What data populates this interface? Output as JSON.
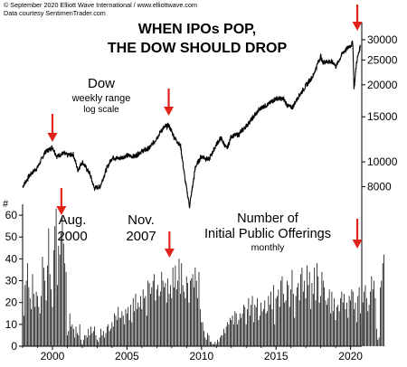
{
  "credits": {
    "line1": "© September 2020 Elliott Wave International / www.elliottwave.com",
    "line2": "Data courtesy SentimenTrader.com"
  },
  "colors": {
    "line": "#000000",
    "bars": "#000000",
    "arrows": "#e2231a",
    "text": "#000000"
  },
  "chart_data": [
    {
      "type": "line",
      "title": "WHEN IPOs POP, THE DOW SHOULD DROP",
      "title_lines": [
        "WHEN IPOs POP,",
        "THE DOW SHOULD DROP"
      ],
      "series_label": [
        "Dow",
        "weekly range",
        "log scale"
      ],
      "yscale": "log",
      "ylim": [
        6500,
        35000
      ],
      "yticks": [
        8000,
        10000,
        15000,
        20000,
        25000,
        30000
      ],
      "ytick_labels": [
        "8000",
        "10000",
        "15000",
        "20000",
        "25000",
        "30000"
      ],
      "xlim": [
        1998,
        2020.75
      ],
      "x": [
        1998.0,
        1998.5,
        1999.0,
        1999.5,
        2000.0,
        2000.3,
        2000.7,
        2001.0,
        2001.4,
        2001.7,
        2002.0,
        2002.5,
        2002.8,
        2003.2,
        2003.6,
        2004.0,
        2004.5,
        2005.0,
        2005.5,
        2006.0,
        2006.5,
        2007.0,
        2007.4,
        2007.8,
        2008.2,
        2008.6,
        2008.9,
        2009.2,
        2009.6,
        2010.0,
        2010.5,
        2011.0,
        2011.3,
        2011.7,
        2012.0,
        2012.5,
        2013.0,
        2013.5,
        2014.0,
        2014.5,
        2015.0,
        2015.5,
        2015.8,
        2016.1,
        2016.5,
        2017.0,
        2017.5,
        2018.0,
        2018.1,
        2018.5,
        2018.9,
        2019.0,
        2019.5,
        2020.0,
        2020.15,
        2020.23,
        2020.4,
        2020.55,
        2020.67
      ],
      "values": [
        8000,
        8900,
        9500,
        10900,
        11400,
        10500,
        10800,
        10600,
        10700,
        9300,
        10000,
        9000,
        7900,
        8000,
        9300,
        10400,
        10300,
        10600,
        10500,
        11000,
        11300,
        12400,
        13500,
        13900,
        12400,
        11500,
        8500,
        6700,
        9600,
        10500,
        10200,
        11700,
        12400,
        11200,
        12600,
        12800,
        13800,
        15000,
        16300,
        16800,
        17700,
        17600,
        16500,
        16300,
        18000,
        19800,
        21800,
        26000,
        24500,
        24700,
        24300,
        23500,
        26800,
        28500,
        29300,
        19200,
        24500,
        26800,
        28500
      ]
    },
    {
      "type": "bar",
      "title": "Number of Initial Public Offerings",
      "title_lines": [
        "Number of",
        "Initial Public Offerings"
      ],
      "subtitle": "monthly",
      "ylabel": "#",
      "ylim": [
        0,
        65
      ],
      "yticks": [
        0,
        10,
        20,
        30,
        40,
        50,
        60
      ],
      "ytick_labels": [
        "0",
        "10",
        "20",
        "30",
        "40",
        "50",
        "60"
      ],
      "xlim": [
        1998,
        2020.75
      ],
      "xticks": [
        2000,
        2005,
        2010,
        2015,
        2020
      ],
      "xtick_labels": [
        "2000",
        "2005",
        "2010",
        "2015",
        "2020"
      ],
      "x_start": 1998.0,
      "x_step": 0.0833,
      "values": [
        32,
        14,
        28,
        30,
        38,
        27,
        22,
        17,
        33,
        24,
        18,
        25,
        23,
        18,
        15,
        23,
        41,
        36,
        30,
        21,
        37,
        54,
        33,
        26,
        18,
        44,
        55,
        63,
        28,
        46,
        42,
        52,
        60,
        47,
        38,
        34,
        5,
        7,
        15,
        9,
        10,
        8,
        4,
        9,
        6,
        5,
        10,
        3,
        1,
        3,
        5,
        5,
        4,
        8,
        5,
        9,
        6,
        7,
        9,
        5,
        3,
        2,
        4,
        8,
        5,
        7,
        4,
        6,
        9,
        10,
        7,
        8,
        11,
        9,
        15,
        14,
        12,
        18,
        13,
        13,
        16,
        14,
        10,
        17,
        15,
        18,
        12,
        19,
        11,
        22,
        16,
        24,
        17,
        20,
        18,
        23,
        17,
        26,
        22,
        23,
        14,
        30,
        29,
        24,
        27,
        30,
        33,
        21,
        26,
        28,
        23,
        25,
        34,
        30,
        27,
        29,
        20,
        31,
        24,
        28,
        22,
        36,
        27,
        37,
        26,
        30,
        40,
        24,
        38,
        28,
        25,
        22,
        32,
        29,
        20,
        30,
        31,
        33,
        27,
        36,
        30,
        22,
        34,
        17,
        11,
        11,
        7,
        4,
        3,
        6,
        5,
        2,
        2,
        1,
        1,
        2,
        1,
        3,
        2,
        4,
        5,
        5,
        8,
        6,
        9,
        11,
        10,
        13,
        12,
        14,
        10,
        16,
        15,
        10,
        12,
        15,
        13,
        15,
        19,
        18,
        10,
        17,
        22,
        14,
        19,
        23,
        11,
        19,
        18,
        22,
        12,
        14,
        20,
        16,
        17,
        21,
        15,
        16,
        23,
        19,
        25,
        17,
        28,
        10,
        22,
        23,
        26,
        18,
        30,
        32,
        24,
        20,
        21,
        30,
        28,
        18,
        26,
        35,
        24,
        13,
        23,
        27,
        29,
        21,
        33,
        36,
        25,
        30,
        22,
        37,
        28,
        34,
        17,
        29,
        24,
        36,
        21,
        38,
        32,
        20,
        23,
        34,
        30,
        27,
        21,
        19,
        22,
        26,
        15,
        25,
        16,
        22,
        12,
        18,
        19,
        16,
        22,
        25,
        20,
        24,
        17,
        20,
        13,
        23,
        21,
        26,
        25,
        17,
        20,
        11,
        23,
        27,
        15,
        10,
        20,
        25,
        28,
        22,
        16,
        19,
        25,
        32,
        26,
        30,
        22,
        8,
        3,
        4,
        27,
        30,
        38,
        42
      ]
    }
  ],
  "annotations": {
    "aug_2000": [
      "Aug.",
      "2000"
    ],
    "nov_2007": [
      "Nov.",
      "2007"
    ],
    "arrows": [
      {
        "name": "dow-2000",
        "x": 2000.0
      },
      {
        "name": "dow-2007",
        "x": 2007.8
      },
      {
        "name": "dow-2020",
        "x": 2020.45
      },
      {
        "name": "ipo-2000",
        "x": 2000.6
      },
      {
        "name": "ipo-2007",
        "x": 2007.85
      },
      {
        "name": "ipo-2020",
        "x": 2020.45
      }
    ]
  }
}
